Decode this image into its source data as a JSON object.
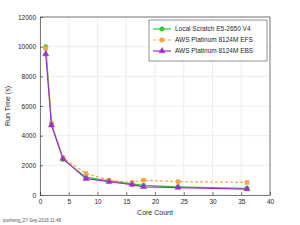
{
  "chart_data": {
    "type": "line",
    "x_label": "Core Count",
    "y_label": "Run Time (s)",
    "annotation": "pusheng_27-Sep-2018 11:48",
    "x": [
      1,
      2,
      4,
      8,
      12,
      16,
      18,
      24,
      36
    ],
    "series": [
      {
        "name": "Local Scratch E5-2650 V4",
        "color": "#33cc33",
        "marker": "circle",
        "line_style": "solid",
        "values": [
          10000,
          4800,
          2400,
          1200,
          950,
          750,
          650,
          550,
          450
        ]
      },
      {
        "name": "AWS Platinum 8124M EFS",
        "color": "#f5a742",
        "marker": "square",
        "line_style": "dashed",
        "values": [
          9900,
          4800,
          2500,
          1450,
          1000,
          850,
          1000,
          900,
          850
        ]
      },
      {
        "name": "AWS Platinum 8124M EBS",
        "color": "#9933cc",
        "marker": "triangle",
        "line_style": "solid",
        "values": [
          9500,
          4700,
          2450,
          1100,
          900,
          700,
          550,
          500,
          400
        ]
      }
    ],
    "xlim": [
      0,
      40
    ],
    "xticks": [
      0,
      5,
      10,
      15,
      20,
      25,
      30,
      35,
      40
    ],
    "ylim": [
      0,
      12000
    ],
    "yticks": [
      0,
      2000,
      4000,
      6000,
      8000,
      10000,
      12000
    ],
    "grid": true,
    "legend": "upper right"
  }
}
